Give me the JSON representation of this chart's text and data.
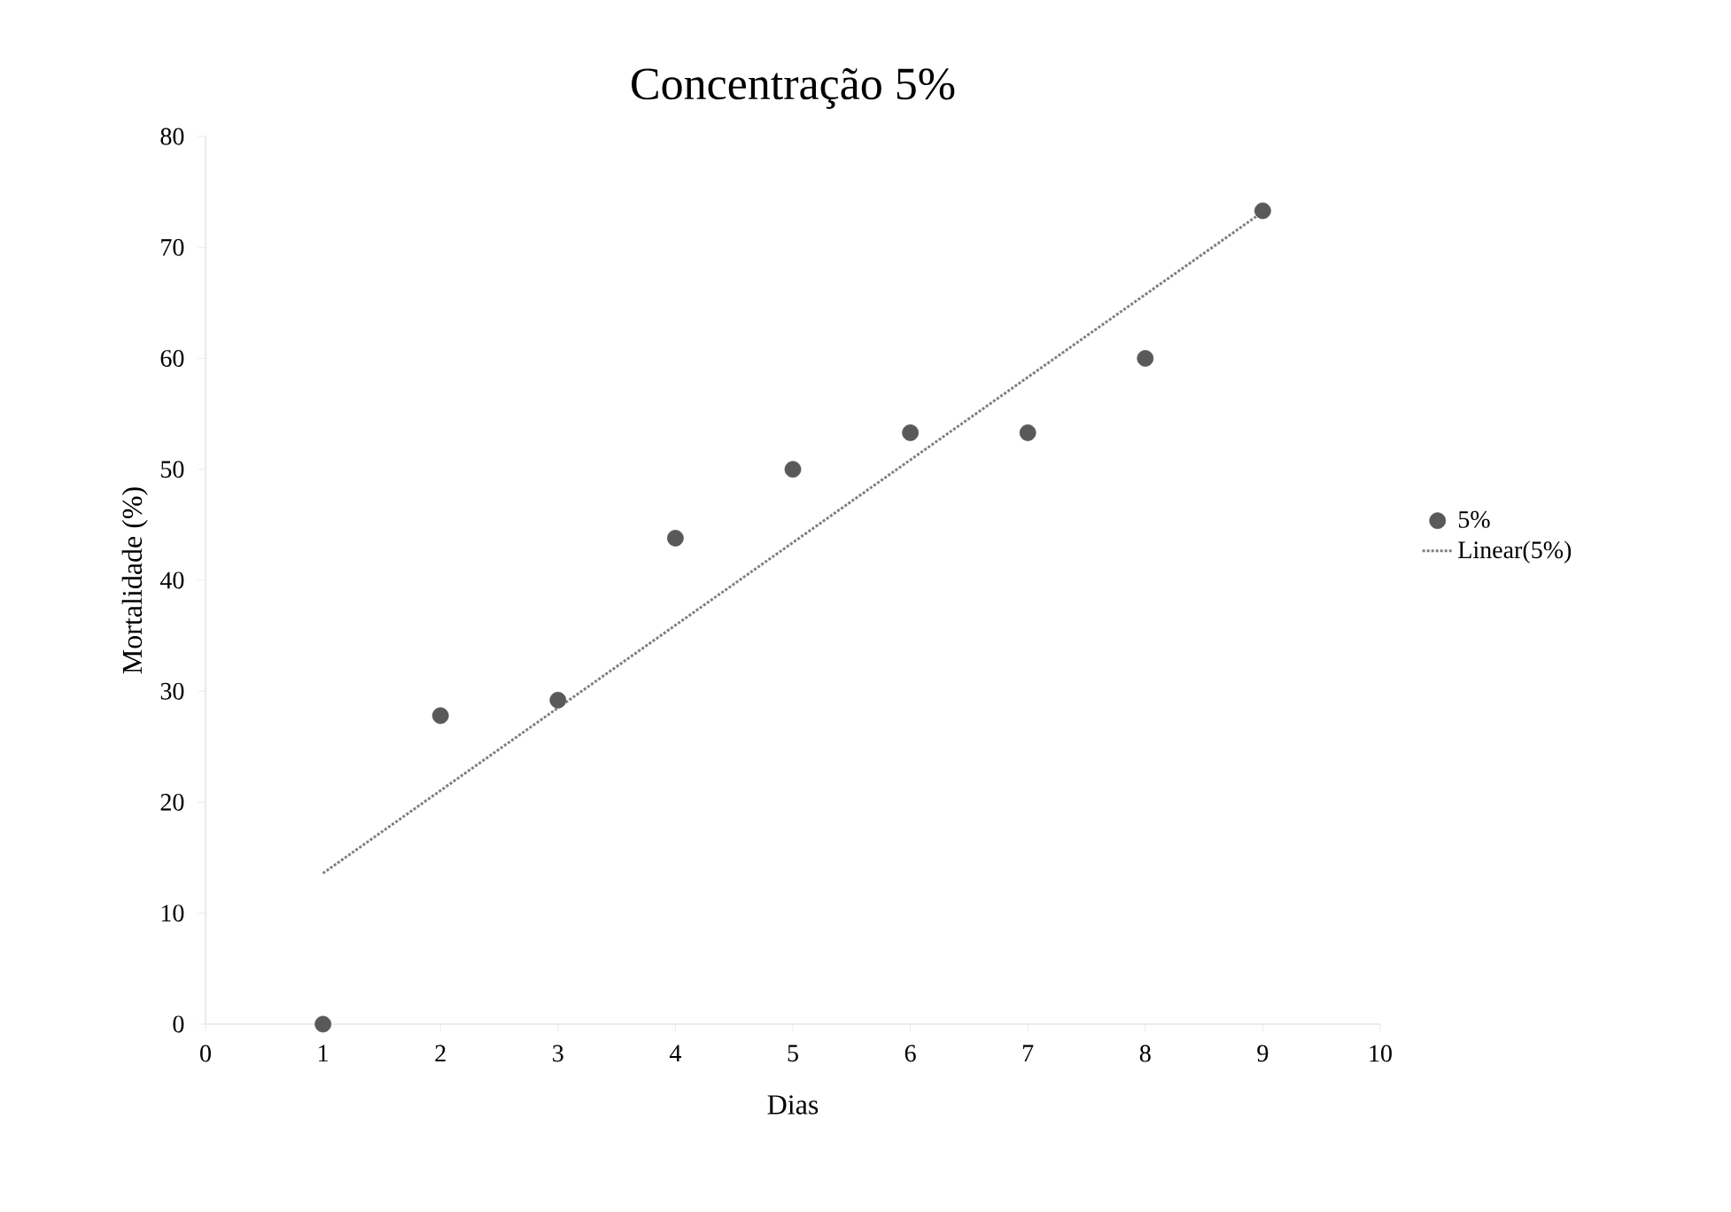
{
  "chart_data": {
    "type": "scatter",
    "title": "Concentração 5%",
    "xlabel": "Dias",
    "ylabel": "Mortalidade (%)",
    "x": [
      1,
      2,
      3,
      4,
      5,
      6,
      7,
      8,
      9
    ],
    "series": [
      {
        "name": "5%",
        "color": "#595959",
        "values": [
          0,
          27.8,
          29.2,
          43.8,
          50,
          53.3,
          53.3,
          60,
          73.3
        ]
      },
      {
        "name": "Linear(5%)",
        "type": "line",
        "color": "#7f7f7f",
        "line_style": "dotted",
        "x": [
          1,
          9
        ],
        "values": [
          13.6,
          73.2
        ]
      }
    ],
    "xlim": [
      0,
      10
    ],
    "ylim": [
      0,
      80
    ],
    "xticks": [
      0,
      1,
      2,
      3,
      4,
      5,
      6,
      7,
      8,
      9,
      10
    ],
    "yticks": [
      0,
      10,
      20,
      30,
      40,
      50,
      60,
      70,
      80
    ],
    "grid": false,
    "legend": "right"
  }
}
